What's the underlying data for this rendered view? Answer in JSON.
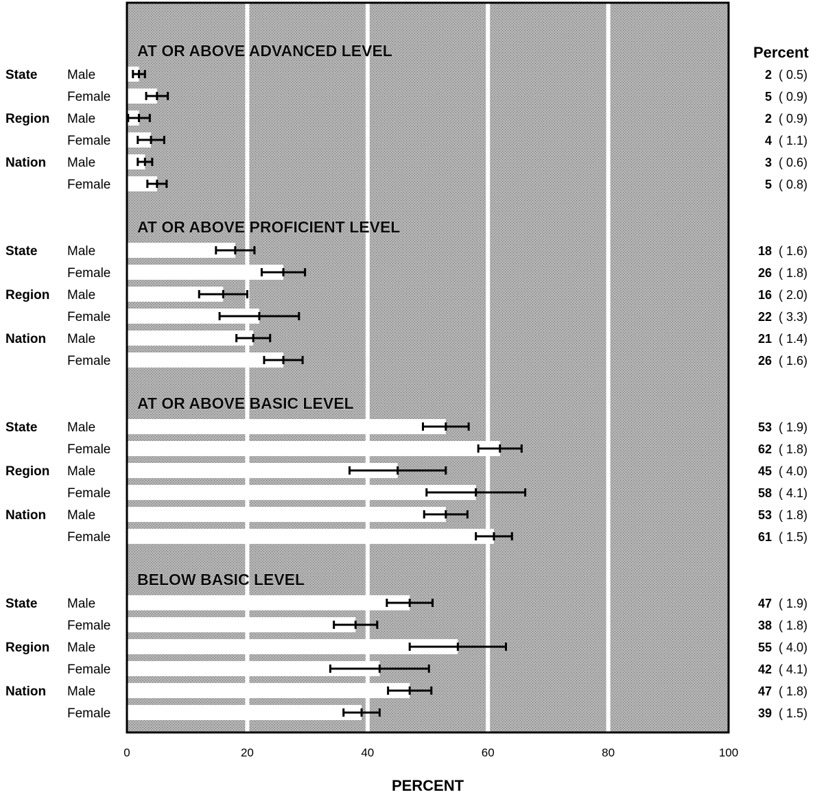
{
  "chart_data": {
    "type": "bar",
    "orientation": "horizontal",
    "xlabel": "PERCENT",
    "xlim": [
      0,
      100
    ],
    "x_ticks": [
      "0",
      "20",
      "40",
      "60",
      "80",
      "100"
    ],
    "gridlines_at": [
      20,
      40,
      60,
      80
    ],
    "value_column_header": "Percent",
    "sections": [
      {
        "title": "AT OR ABOVE ADVANCED LEVEL",
        "rows": [
          {
            "group": "State",
            "sex": "Male",
            "value": 2,
            "se": 0.5,
            "value_label": "2",
            "se_label": "( 0.5)"
          },
          {
            "group": "",
            "sex": "Female",
            "value": 5,
            "se": 0.9,
            "value_label": "5",
            "se_label": "( 0.9)"
          },
          {
            "group": "Region",
            "sex": "Male",
            "value": 2,
            "se": 0.9,
            "value_label": "2",
            "se_label": "( 0.9)"
          },
          {
            "group": "",
            "sex": "Female",
            "value": 4,
            "se": 1.1,
            "value_label": "4",
            "se_label": "( 1.1)"
          },
          {
            "group": "Nation",
            "sex": "Male",
            "value": 3,
            "se": 0.6,
            "value_label": "3",
            "se_label": "( 0.6)"
          },
          {
            "group": "",
            "sex": "Female",
            "value": 5,
            "se": 0.8,
            "value_label": "5",
            "se_label": "( 0.8)"
          }
        ]
      },
      {
        "title": "AT OR ABOVE PROFICIENT LEVEL",
        "rows": [
          {
            "group": "State",
            "sex": "Male",
            "value": 18,
            "se": 1.6,
            "value_label": "18",
            "se_label": "( 1.6)"
          },
          {
            "group": "",
            "sex": "Female",
            "value": 26,
            "se": 1.8,
            "value_label": "26",
            "se_label": "( 1.8)"
          },
          {
            "group": "Region",
            "sex": "Male",
            "value": 16,
            "se": 2.0,
            "value_label": "16",
            "se_label": "( 2.0)"
          },
          {
            "group": "",
            "sex": "Female",
            "value": 22,
            "se": 3.3,
            "value_label": "22",
            "se_label": "( 3.3)"
          },
          {
            "group": "Nation",
            "sex": "Male",
            "value": 21,
            "se": 1.4,
            "value_label": "21",
            "se_label": "( 1.4)"
          },
          {
            "group": "",
            "sex": "Female",
            "value": 26,
            "se": 1.6,
            "value_label": "26",
            "se_label": "( 1.6)"
          }
        ]
      },
      {
        "title": "AT OR ABOVE BASIC LEVEL",
        "rows": [
          {
            "group": "State",
            "sex": "Male",
            "value": 53,
            "se": 1.9,
            "value_label": "53",
            "se_label": "( 1.9)"
          },
          {
            "group": "",
            "sex": "Female",
            "value": 62,
            "se": 1.8,
            "value_label": "62",
            "se_label": "( 1.8)"
          },
          {
            "group": "Region",
            "sex": "Male",
            "value": 45,
            "se": 4.0,
            "value_label": "45",
            "se_label": "( 4.0)"
          },
          {
            "group": "",
            "sex": "Female",
            "value": 58,
            "se": 4.1,
            "value_label": "58",
            "se_label": "( 4.1)"
          },
          {
            "group": "Nation",
            "sex": "Male",
            "value": 53,
            "se": 1.8,
            "value_label": "53",
            "se_label": "( 1.8)"
          },
          {
            "group": "",
            "sex": "Female",
            "value": 61,
            "se": 1.5,
            "value_label": "61",
            "se_label": "( 1.5)"
          }
        ]
      },
      {
        "title": "BELOW BASIC LEVEL",
        "rows": [
          {
            "group": "State",
            "sex": "Male",
            "value": 47,
            "se": 1.9,
            "value_label": "47",
            "se_label": "( 1.9)"
          },
          {
            "group": "",
            "sex": "Female",
            "value": 38,
            "se": 1.8,
            "value_label": "38",
            "se_label": "( 1.8)"
          },
          {
            "group": "Region",
            "sex": "Male",
            "value": 55,
            "se": 4.0,
            "value_label": "55",
            "se_label": "( 4.0)"
          },
          {
            "group": "",
            "sex": "Female",
            "value": 42,
            "se": 4.1,
            "value_label": "42",
            "se_label": "( 4.1)"
          },
          {
            "group": "Nation",
            "sex": "Male",
            "value": 47,
            "se": 1.8,
            "value_label": "47",
            "se_label": "( 1.8)"
          },
          {
            "group": "",
            "sex": "Female",
            "value": 39,
            "se": 1.5,
            "value_label": "39",
            "se_label": "( 1.5)"
          }
        ]
      }
    ],
    "colors": {
      "plot_background": "#a9a9a9",
      "bar_fill": "#ffffff",
      "gridline": "#ffffff",
      "error_bar": "#000000"
    }
  }
}
